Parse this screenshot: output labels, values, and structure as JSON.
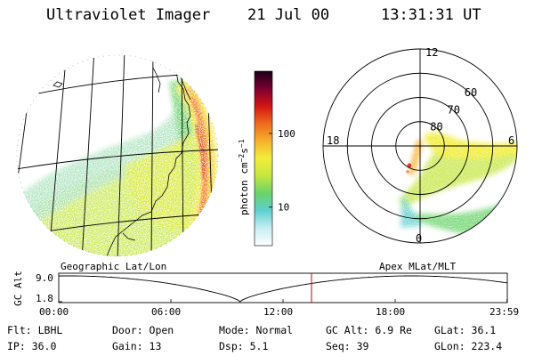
{
  "header": {
    "title": "Ultraviolet Imager",
    "date": "21 Jul 00",
    "time": "13:31:31 UT"
  },
  "colorbar": {
    "unit_label": "photon cm",
    "unit_sup1": "−2",
    "unit_s": "s",
    "unit_sup2": "−1",
    "ticks": [
      "100",
      "10"
    ],
    "tick_values": [
      100,
      10
    ],
    "range": [
      3,
      700
    ],
    "scale": "log",
    "colors": [
      "#ffffff",
      "#c8eef2",
      "#5ecfd0",
      "#6ad36a",
      "#c4e640",
      "#f2ee3a",
      "#f6b12b",
      "#ee6a1d",
      "#d41414",
      "#7a0030",
      "#1a0018"
    ]
  },
  "panels": {
    "left_caption": "Geographic Lat/Lon",
    "right_caption": "Apex MLat/MLT"
  },
  "polar": {
    "mlt_labels": [
      "12",
      "18",
      "6",
      "0"
    ],
    "mlat_labels": [
      "80",
      "70",
      "60"
    ],
    "mlat_rings": [
      80,
      70,
      60,
      50
    ]
  },
  "altitude_plot": {
    "ylabel": "GC Alt",
    "yticks": [
      "9.0",
      "1.8"
    ],
    "ytick_values": [
      9.0,
      1.8
    ],
    "xticks": [
      "00:00",
      "06:00",
      "12:00",
      "18:00",
      "23:59"
    ],
    "xtick_hours": [
      0,
      6,
      12,
      18,
      23.983
    ],
    "current_hour": 13.525,
    "marker_color": "#cc0000",
    "perigee_hour": 9.7,
    "perigee_alt": 1.8,
    "apogee_alt": 9.0,
    "orbit_period_h": 18.3
  },
  "footer": {
    "flt": "Flt: LBHL",
    "ip": "IP: 36.0",
    "door": "Door: Open",
    "gain": "Gain: 13",
    "mode": "Mode: Normal",
    "dsp": "Dsp:   5.1",
    "gc_alt": "GC Alt: 6.9 Re",
    "seq": "Seq: 39",
    "glat": "GLat:  36.1",
    "glon": "GLon: 223.4"
  }
}
